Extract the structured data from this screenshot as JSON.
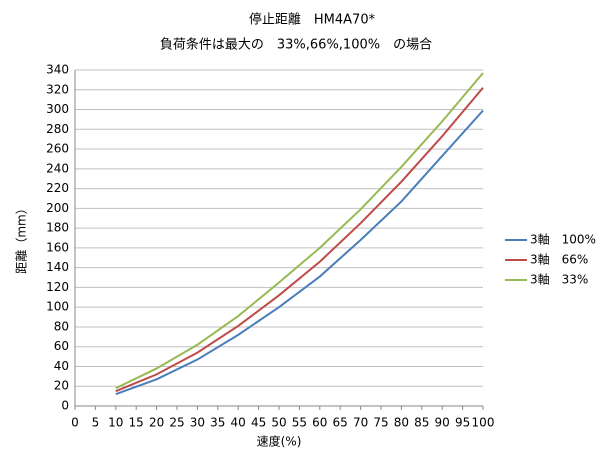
{
  "chart_data": {
    "type": "line",
    "title": "停止距離　HM4A70*",
    "subtitle": "負荷条件は最大の　33%,66%,100%　の場合",
    "x_label": "速度(%)",
    "y_label": "距離（mm）",
    "x": [
      10,
      20,
      30,
      40,
      50,
      60,
      70,
      80,
      90,
      100
    ],
    "series": [
      {
        "name": "3軸　100%",
        "color": "#4a7ebb",
        "values": [
          12,
          27,
          47,
          72,
          100,
          131,
          168,
          207,
          253,
          299
        ]
      },
      {
        "name": "3軸　66%",
        "color": "#be4b48",
        "values": [
          15,
          32,
          54,
          81,
          112,
          146,
          185,
          227,
          273,
          322
        ]
      },
      {
        "name": "3軸　33%",
        "color": "#98b954",
        "values": [
          18,
          38,
          62,
          91,
          125,
          160,
          199,
          242,
          288,
          337
        ]
      }
    ],
    "xlim": [
      0,
      100
    ],
    "xticks": [
      0,
      5,
      10,
      15,
      20,
      25,
      30,
      35,
      40,
      45,
      50,
      55,
      60,
      65,
      70,
      75,
      80,
      85,
      90,
      95,
      100
    ],
    "ylim": [
      0,
      340
    ],
    "yticks": [
      0,
      20,
      40,
      60,
      80,
      100,
      120,
      140,
      160,
      180,
      200,
      220,
      240,
      260,
      280,
      300,
      320,
      340
    ],
    "grid": true,
    "legend": "right"
  }
}
